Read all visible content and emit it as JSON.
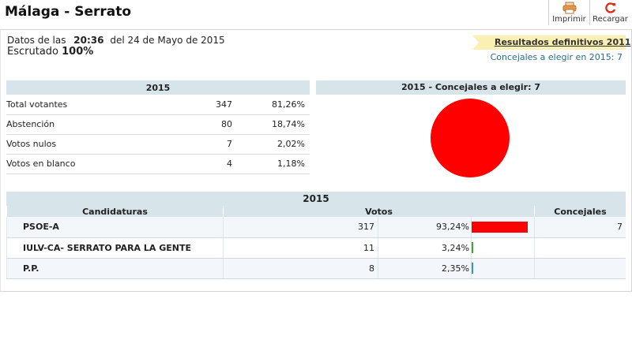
{
  "header": {
    "title": "Málaga - Serrato",
    "print_label": "Imprimir",
    "reload_label": "Recargar"
  },
  "meta": {
    "data_prefix": "Datos de las",
    "time": "20:36",
    "date_suffix": "del 24 de Mayo de 2015",
    "scrutiny_label": "Escrutado",
    "scrutiny_value": "100%"
  },
  "badge": {
    "label": "Resultados definitivos 2011",
    "concejales_line": "Concejales a elegir en 2015: 7"
  },
  "summary": {
    "header": "2015",
    "rows": [
      {
        "label": "Total votantes",
        "count": "347",
        "percent": "81,26%"
      },
      {
        "label": "Abstención",
        "count": "80",
        "percent": "18,74%"
      },
      {
        "label": "Votos nulos",
        "count": "7",
        "percent": "2,02%"
      },
      {
        "label": "Votos en blanco",
        "count": "4",
        "percent": "1,18%"
      }
    ]
  },
  "pie": {
    "header": "2015 - Concejales a elegir: 7",
    "slices": [
      {
        "party": "PSOE-A",
        "seats": 7,
        "color": "#ff0000"
      }
    ]
  },
  "results": {
    "header": "2015",
    "columns": [
      "Candidaturas",
      "Votos",
      "Concejales"
    ],
    "rows": [
      {
        "party": "PSOE-A",
        "votes": "317",
        "percent": "93,24%",
        "share": 0.9324,
        "color": "#ff0000",
        "seats": "7"
      },
      {
        "party": "IULV-CA- SERRATO PARA LA GENTE",
        "votes": "11",
        "percent": "3,24%",
        "share": 0.0324,
        "color": "#3fa535",
        "seats": ""
      },
      {
        "party": "P.P.",
        "votes": "8",
        "percent": "2,35%",
        "share": 0.0235,
        "color": "#3c8fd6",
        "seats": ""
      }
    ]
  }
}
